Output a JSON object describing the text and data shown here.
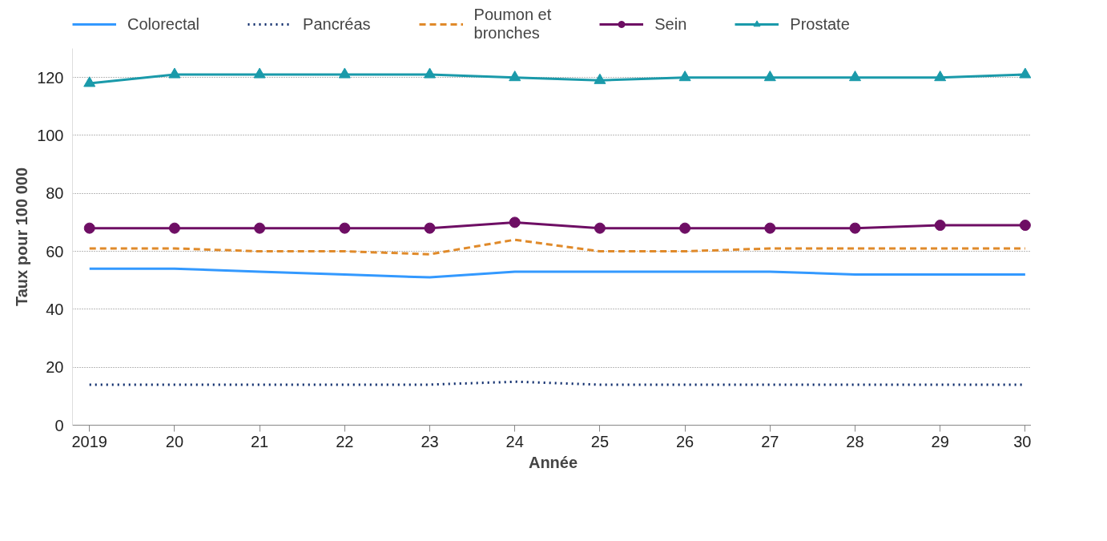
{
  "chart_data": {
    "type": "line",
    "xlabel": "Année",
    "ylabel": "Taux pour 100 000",
    "x": [
      2019,
      2020,
      2021,
      2022,
      2023,
      2024,
      2025,
      2026,
      2027,
      2028,
      2029,
      2030
    ],
    "xlim": [
      2018.8,
      2030.1
    ],
    "xticks": [
      {
        "value": 2019,
        "label": "2019"
      },
      {
        "value": 2020,
        "label": "20"
      },
      {
        "value": 2021,
        "label": "21"
      },
      {
        "value": 2022,
        "label": "22"
      },
      {
        "value": 2023,
        "label": "23"
      },
      {
        "value": 2024,
        "label": "24"
      },
      {
        "value": 2025,
        "label": "25"
      },
      {
        "value": 2026,
        "label": "26"
      },
      {
        "value": 2027,
        "label": "27"
      },
      {
        "value": 2028,
        "label": "28"
      },
      {
        "value": 2029,
        "label": "29"
      },
      {
        "value": 2030,
        "label": "30"
      }
    ],
    "ylim": [
      0,
      130
    ],
    "yticks": [
      0,
      20,
      40,
      60,
      80,
      100,
      120
    ],
    "grid": "y",
    "legend": "top",
    "series": [
      {
        "name": "Colorectal",
        "color": "#3399ff",
        "line_style": "solid",
        "marker": "none",
        "values": [
          54,
          54,
          53,
          52,
          51,
          53,
          53,
          53,
          53,
          52,
          52,
          52
        ]
      },
      {
        "name": "Pancréas",
        "color": "#0b2a6b",
        "line_style": "dotted",
        "marker": "none",
        "values": [
          14,
          14,
          14,
          14,
          14,
          15,
          14,
          14,
          14,
          14,
          14,
          14
        ]
      },
      {
        "name": "Poumon et\nbronches",
        "color": "#e08a2a",
        "line_style": "dashed",
        "marker": "none",
        "values": [
          61,
          61,
          60,
          60,
          59,
          64,
          60,
          60,
          61,
          61,
          61,
          61
        ]
      },
      {
        "name": "Sein",
        "color": "#6e0e64",
        "line_style": "solid",
        "marker": "circle",
        "values": [
          68,
          68,
          68,
          68,
          68,
          70,
          68,
          68,
          68,
          68,
          69,
          69
        ]
      },
      {
        "name": "Prostate",
        "color": "#1a9aaa",
        "line_style": "solid",
        "marker": "triangle",
        "values": [
          118,
          121,
          121,
          121,
          121,
          120,
          119,
          120,
          120,
          120,
          120,
          121
        ]
      }
    ]
  }
}
